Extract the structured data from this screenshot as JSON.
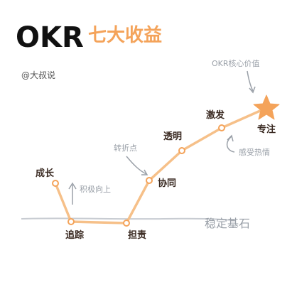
{
  "title": {
    "okr": "OKR",
    "subtitle": "七大收益"
  },
  "author": "@大叔说",
  "baseline_label": "稳定基石",
  "stages": {
    "growth": "成长",
    "tracking": "追踪",
    "accountability": "担责",
    "collaboration": "协同",
    "transparency": "透明",
    "motivation": "激发",
    "focus": "专注"
  },
  "annotations": {
    "core_value": "OKR核心价值",
    "turning_point": "转折点",
    "positive_upward": "积极向上",
    "feel_passion": "感受热情"
  },
  "colors": {
    "line": "#f6c089",
    "node_fill": "#ffffff",
    "node_stroke": "#f4a35a",
    "star": "#f4a35a",
    "title_accent": "#f4a35a",
    "baseline": "#c8ccd2",
    "note_gray": "#9aa0a8"
  }
}
